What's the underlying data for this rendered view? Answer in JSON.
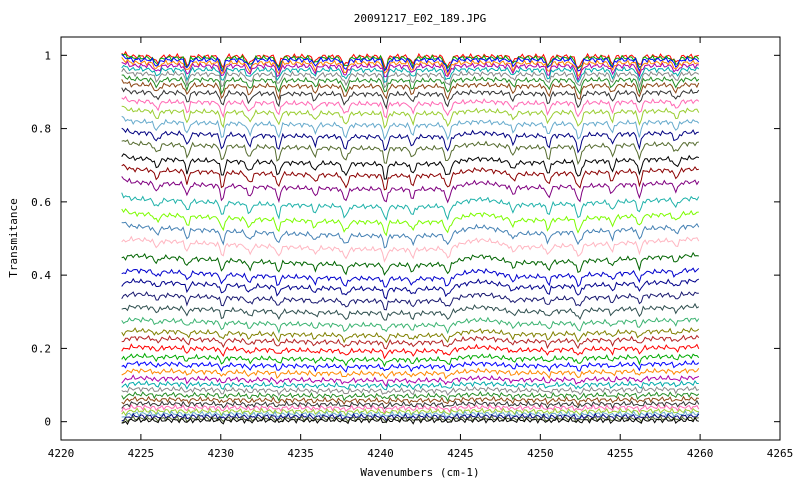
{
  "chart_data": {
    "type": "line",
    "title": "20091217_E02_189.JPG",
    "xlabel": "Wavenumbers (cm-1)",
    "ylabel": "Transmitance",
    "xlim": [
      4220,
      4265
    ],
    "ylim": [
      -0.05,
      1.05
    ],
    "x_ticks": [
      4220,
      4225,
      4230,
      4235,
      4240,
      4245,
      4250,
      4255,
      4260,
      4265
    ],
    "x_tick_labels": [
      "4220",
      "4225",
      "4230",
      "4235",
      "4240",
      "4245",
      "4250",
      "4255",
      "4260",
      "4265"
    ],
    "y_ticks": [
      0,
      0.2,
      0.4,
      0.6,
      0.8,
      1
    ],
    "y_tick_labels": [
      "0",
      "0.2",
      "0.4",
      "0.6",
      "0.8",
      "1"
    ],
    "grid": false,
    "legend": "none",
    "x_range_of_data": [
      4223.8,
      4260
    ],
    "absorption_lines": [
      4226,
      4227.9,
      4230.1,
      4231.8,
      4233.6,
      4235.9,
      4237.8,
      4240.3,
      4242,
      4244.2,
      4248.3,
      4250.5,
      4252.4,
      4254.5,
      4256.2,
      4258.5
    ],
    "series_levels": [
      0.997,
      0.993,
      0.988,
      0.98,
      0.972,
      0.962,
      0.95,
      0.935,
      0.92,
      0.9,
      0.875,
      0.85,
      0.82,
      0.79,
      0.76,
      0.72,
      0.69,
      0.655,
      0.61,
      0.57,
      0.535,
      0.5,
      0.455,
      0.415,
      0.385,
      0.35,
      0.315,
      0.28,
      0.25,
      0.23,
      0.205,
      0.18,
      0.16,
      0.14,
      0.12,
      0.105,
      0.09,
      0.075,
      0.062,
      0.05,
      0.04,
      0.03,
      0.022,
      0.015,
      0.009,
      0.004
    ],
    "series_colors": [
      "#ff0000",
      "#00aa00",
      "#0000ff",
      "#ff8800",
      "#aa00aa",
      "#00aaaa",
      "#888888",
      "#228b22",
      "#8b4513",
      "#333333",
      "#ff69b4",
      "#9acd32",
      "#66aacc",
      "#000080",
      "#556b2f",
      "#000000",
      "#8b0000",
      "#800080",
      "#20b2aa",
      "#7cfc00",
      "#4682b4",
      "#ffb6c1",
      "#006400",
      "#0000cd",
      "#00008b",
      "#191970",
      "#2f4f4f",
      "#3cb371",
      "#808000",
      "#b22222"
    ]
  }
}
